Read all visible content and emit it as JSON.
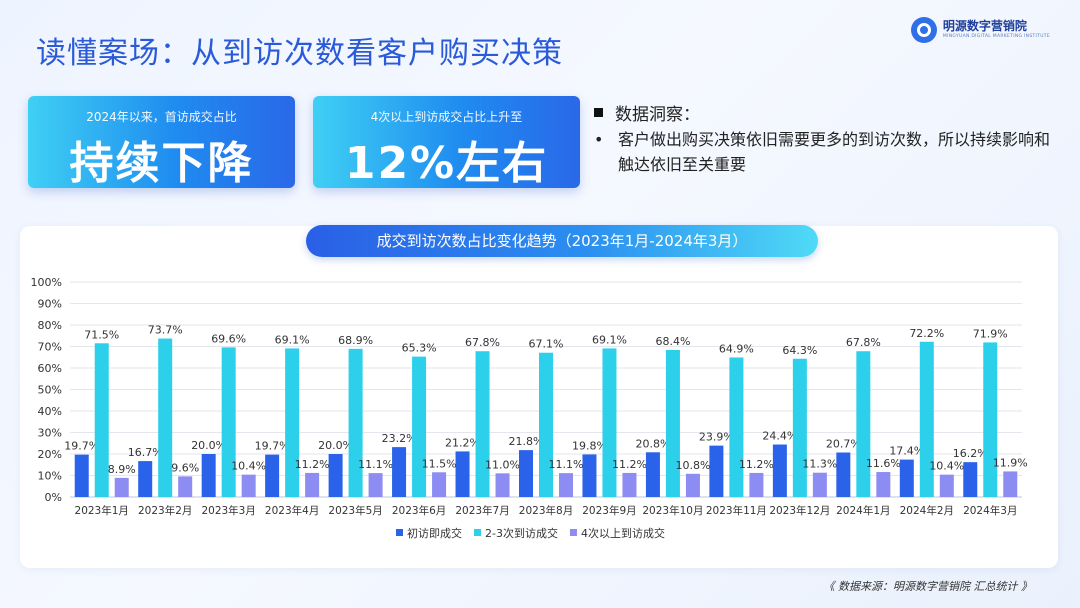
{
  "page": {
    "title": "读懂案场：从到访次数看客户购买决策",
    "logo_name": "明源数字营销院",
    "logo_sub": "MINGYUAN DIGITAL MARKETING INSTITUTE",
    "source": "《 数据来源：明源数字营销院 汇总统计 》"
  },
  "cards": [
    {
      "sub": "2024年以来，首访成交占比",
      "big": "持续下降"
    },
    {
      "sub": "4次以上到访成交占比上升至",
      "big": "12%左右"
    }
  ],
  "insight": {
    "heading": "数据洞察：",
    "bullet": "•",
    "text": "客户做出购买决策依旧需要更多的到访次数，所以持续影响和触达依旧至关重要"
  },
  "colors": {
    "series": [
      "#2b62ea",
      "#2cd0ea",
      "#8c8cf2"
    ],
    "title": "#2a5ad8"
  },
  "chart_data": {
    "type": "bar",
    "title": "成交到访次数占比变化趋势（2023年1月-2024年3月）",
    "categories": [
      "2023年1月",
      "2023年2月",
      "2023年3月",
      "2023年4月",
      "2023年5月",
      "2023年6月",
      "2023年7月",
      "2023年8月",
      "2023年9月",
      "2023年10月",
      "2023年11月",
      "2023年12月",
      "2024年1月",
      "2024年2月",
      "2024年3月"
    ],
    "series": [
      {
        "name": "初访即成交",
        "values": [
          19.7,
          16.7,
          20.0,
          19.7,
          20.0,
          23.2,
          21.2,
          21.8,
          19.8,
          20.8,
          23.9,
          24.4,
          20.7,
          17.4,
          16.2
        ]
      },
      {
        "name": "2-3次到访成交",
        "values": [
          71.5,
          73.7,
          69.6,
          69.1,
          68.9,
          65.3,
          67.8,
          67.1,
          69.1,
          68.4,
          64.9,
          64.3,
          67.8,
          72.2,
          71.9
        ]
      },
      {
        "name": "4次以上到访成交",
        "values": [
          8.9,
          9.6,
          10.4,
          11.2,
          11.1,
          11.5,
          11.0,
          11.1,
          11.2,
          10.8,
          11.2,
          11.3,
          11.6,
          10.4,
          11.9
        ]
      }
    ],
    "yticks": [
      "0%",
      "10%",
      "20%",
      "30%",
      "40%",
      "50%",
      "60%",
      "70%",
      "80%",
      "90%",
      "100%"
    ],
    "ylim": [
      0,
      100
    ],
    "grid": true,
    "legend": "bottom"
  }
}
